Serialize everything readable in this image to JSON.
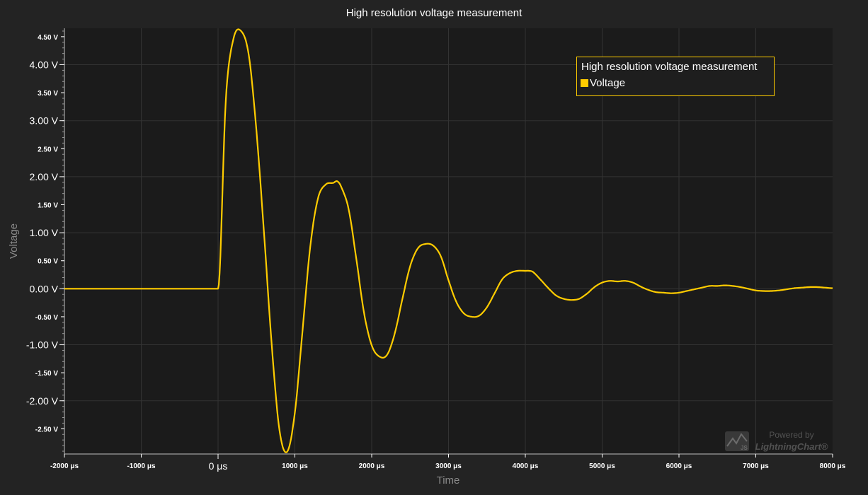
{
  "chart_data": {
    "type": "line",
    "title": "High resolution voltage measurement",
    "xlabel": "Time",
    "ylabel": "Voltage",
    "xlim": [
      -2000,
      8000
    ],
    "ylim": [
      -2.95,
      4.65
    ],
    "x_unit": "μs",
    "y_unit": "V",
    "x_ticks_major": [
      {
        "value": 0,
        "label": "0 μs"
      }
    ],
    "x_ticks_minor": [
      {
        "value": -2000,
        "label": "-2000 μs"
      },
      {
        "value": -1000,
        "label": "-1000 μs"
      },
      {
        "value": 1000,
        "label": "1000 μs"
      },
      {
        "value": 2000,
        "label": "2000 μs"
      },
      {
        "value": 3000,
        "label": "3000 μs"
      },
      {
        "value": 4000,
        "label": "4000 μs"
      },
      {
        "value": 5000,
        "label": "5000 μs"
      },
      {
        "value": 6000,
        "label": "6000 μs"
      },
      {
        "value": 7000,
        "label": "7000 μs"
      },
      {
        "value": 8000,
        "label": "8000 μs"
      }
    ],
    "y_ticks_major": [
      {
        "value": 4.0,
        "label": "4.00 V"
      },
      {
        "value": 3.0,
        "label": "3.00 V"
      },
      {
        "value": 2.0,
        "label": "2.00 V"
      },
      {
        "value": 1.0,
        "label": "1.00 V"
      },
      {
        "value": 0.0,
        "label": "0.00 V"
      },
      {
        "value": -1.0,
        "label": "-1.00 V"
      },
      {
        "value": -2.0,
        "label": "-2.00 V"
      }
    ],
    "y_ticks_minor": [
      {
        "value": 4.5,
        "label": "4.50 V"
      },
      {
        "value": 3.5,
        "label": "3.50 V"
      },
      {
        "value": 2.5,
        "label": "2.50 V"
      },
      {
        "value": 1.5,
        "label": "1.50 V"
      },
      {
        "value": 0.5,
        "label": "0.50 V"
      },
      {
        "value": -0.5,
        "label": "-0.50 V"
      },
      {
        "value": -1.5,
        "label": "-1.50 V"
      },
      {
        "value": -2.5,
        "label": "-2.50 V"
      }
    ],
    "grid": true,
    "legend": {
      "title": "High resolution voltage measurement",
      "placement": "top-right",
      "entries": [
        {
          "label": "Voltage",
          "color": "#ffcc00"
        }
      ]
    },
    "series": [
      {
        "name": "Voltage",
        "color": "#ffcc00",
        "x": [
          -2000,
          -1500,
          -1000,
          -500,
          0,
          100,
          200,
          300,
          400,
          500,
          600,
          700,
          800,
          900,
          1000,
          1100,
          1200,
          1300,
          1400,
          1500,
          1550,
          1600,
          1700,
          1800,
          1900,
          2000,
          2100,
          2200,
          2300,
          2400,
          2500,
          2600,
          2700,
          2800,
          2900,
          3000,
          3100,
          3200,
          3300,
          3400,
          3500,
          3600,
          3700,
          3800,
          3900,
          4000,
          4050,
          4100,
          4200,
          4300,
          4400,
          4500,
          4600,
          4700,
          4800,
          4900,
          5000,
          5100,
          5200,
          5300,
          5400,
          5500,
          5600,
          5700,
          5800,
          5900,
          6000,
          6100,
          6200,
          6300,
          6400,
          6500,
          6600,
          6700,
          6800,
          6900,
          7000,
          7100,
          7200,
          7300,
          7400,
          7500,
          7600,
          7700,
          7800,
          7900,
          8000
        ],
        "y": [
          0.0,
          0.0,
          0.0,
          0.0,
          0.0,
          3.35,
          4.46,
          4.6,
          4.17,
          2.81,
          0.96,
          -1.03,
          -2.53,
          -2.91,
          -2.21,
          -0.74,
          0.75,
          1.61,
          1.86,
          1.89,
          1.92,
          1.83,
          1.42,
          0.53,
          -0.43,
          -1.01,
          -1.21,
          -1.18,
          -0.8,
          -0.18,
          0.4,
          0.72,
          0.8,
          0.77,
          0.58,
          0.15,
          -0.23,
          -0.44,
          -0.5,
          -0.48,
          -0.33,
          -0.08,
          0.17,
          0.28,
          0.32,
          0.32,
          0.32,
          0.3,
          0.16,
          0.01,
          -0.12,
          -0.18,
          -0.2,
          -0.18,
          -0.09,
          0.03,
          0.11,
          0.14,
          0.13,
          0.14,
          0.11,
          0.04,
          -0.02,
          -0.06,
          -0.07,
          -0.08,
          -0.07,
          -0.04,
          -0.01,
          0.02,
          0.05,
          0.05,
          0.06,
          0.05,
          0.03,
          0.0,
          -0.03,
          -0.04,
          -0.04,
          -0.03,
          -0.01,
          0.01,
          0.02,
          0.03,
          0.03,
          0.02,
          0.01
        ]
      }
    ]
  },
  "watermark": {
    "line1": "Powered by",
    "line2": "LightningChart®",
    "logo_text": "JS"
  }
}
